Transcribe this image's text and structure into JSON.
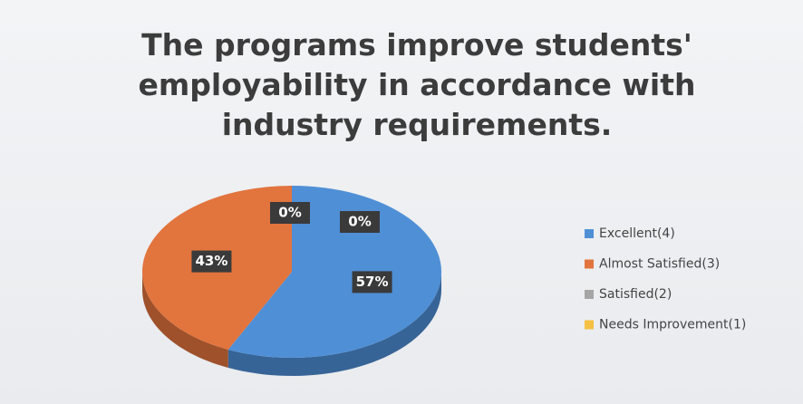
{
  "chart_data": {
    "type": "pie",
    "title": "The programs improve students' employability in accordance with industry requirements.",
    "categories": [
      "Excellent(4)",
      "Almost Satisfied(3)",
      "Satisfied(2)",
      "Needs Improvement(1)"
    ],
    "values": [
      57,
      43,
      0,
      0
    ],
    "value_labels": [
      "57%",
      "43%",
      "0%",
      "0%"
    ],
    "colors": [
      "#4f8fd6",
      "#e2743d",
      "#a5a5a5",
      "#f5c043"
    ],
    "legend": "right"
  }
}
